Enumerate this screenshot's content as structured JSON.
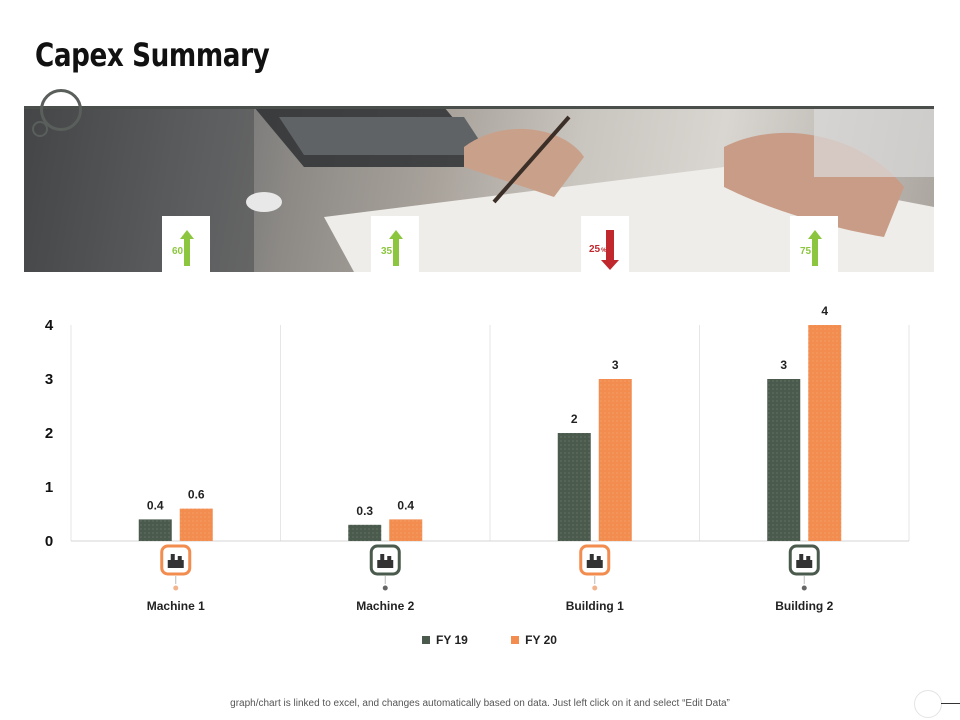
{
  "title": "Capex Summary",
  "indicators": [
    {
      "value": "60",
      "unit": "%",
      "direction": "up",
      "color": "#8cc63f"
    },
    {
      "value": "35",
      "unit": "%",
      "direction": "up",
      "color": "#8cc63f"
    },
    {
      "value": "25",
      "unit": "%",
      "direction": "down",
      "color": "#c0282d"
    },
    {
      "value": "75",
      "unit": "%",
      "direction": "up",
      "color": "#8cc63f"
    }
  ],
  "chart_data": {
    "type": "bar",
    "title": "",
    "xlabel": "",
    "ylabel": "",
    "categories": [
      "Machine 1",
      "Machine 2",
      "Building 1",
      "Building 2"
    ],
    "category_icons": [
      "factory-icon",
      "machine-icon",
      "building-icon",
      "buildings-icon"
    ],
    "series": [
      {
        "name": "FY 19",
        "values": [
          0.4,
          0.3,
          2,
          3
        ],
        "labels": [
          "0.4",
          "0.3",
          "2",
          "3"
        ],
        "color": "#4a5a4c"
      },
      {
        "name": "FY 20",
        "values": [
          0.6,
          0.4,
          3,
          4
        ],
        "labels": [
          "0.6",
          "0.4",
          "3",
          "4"
        ],
        "color": "#f28c4f"
      }
    ],
    "ylim": [
      0,
      4
    ],
    "yticks": [
      "0",
      "1",
      "2",
      "3",
      "4"
    ],
    "grid": "vertical-dividers",
    "legend": "bottom-center"
  },
  "footnote": "graph/chart is linked to excel, and changes automatically based on data. Just left click on it and select “Edit Data”"
}
